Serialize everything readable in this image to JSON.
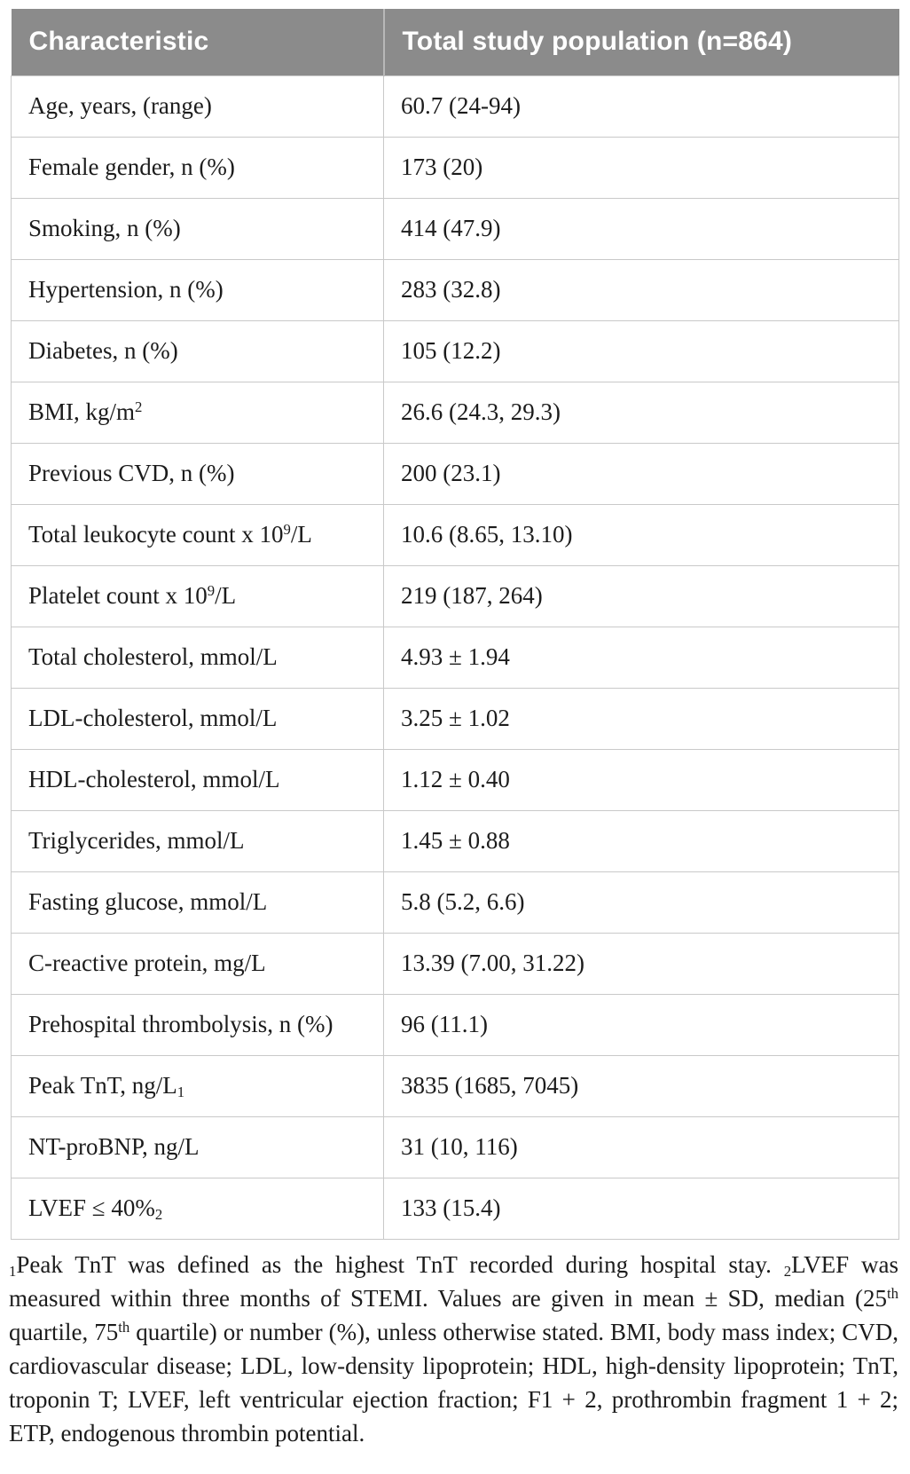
{
  "table": {
    "columns": [
      {
        "label": "Characteristic"
      },
      {
        "label": "Total study population (n=864)"
      }
    ],
    "rows": [
      {
        "characteristic": "Age, years, (range)",
        "value": "60.7 (24-94)"
      },
      {
        "characteristic": "Female gender, n (%)",
        "value": "173 (20)"
      },
      {
        "characteristic": "Smoking, n (%)",
        "value": "414 (47.9)"
      },
      {
        "characteristic": "Hypertension, n (%)",
        "value": "283 (32.8)"
      },
      {
        "characteristic": "Diabetes, n (%)",
        "value": "105 (12.2)"
      },
      {
        "characteristic": "BMI, kg/m^{2}",
        "value": "26.6 (24.3, 29.3)"
      },
      {
        "characteristic": "Previous CVD, n (%)",
        "value": "200 (23.1)"
      },
      {
        "characteristic": "Total leukocyte count x 10^{9}/L",
        "value": "10.6 (8.65, 13.10)"
      },
      {
        "characteristic": "Platelet count x 10^{9}/L",
        "value": "219 (187, 264)"
      },
      {
        "characteristic": "Total cholesterol, mmol/L",
        "value": "4.93 ± 1.94"
      },
      {
        "characteristic": "LDL-cholesterol, mmol/L",
        "value": "3.25 ± 1.02"
      },
      {
        "characteristic": "HDL-cholesterol, mmol/L",
        "value": "1.12 ± 0.40"
      },
      {
        "characteristic": "Triglycerides, mmol/L",
        "value": "1.45 ± 0.88"
      },
      {
        "characteristic": "Fasting glucose, mmol/L",
        "value": "5.8 (5.2, 6.6)"
      },
      {
        "characteristic": "C-reactive protein, mg/L",
        "value": "13.39 (7.00, 31.22)"
      },
      {
        "characteristic": "Prehospital thrombolysis, n (%)",
        "value": "96 (11.1)"
      },
      {
        "characteristic": "Peak TnT, ng/L_{1}",
        "value": "3835 (1685, 7045)"
      },
      {
        "characteristic": "NT-proBNP, ng/L",
        "value": "31 (10, 116)"
      },
      {
        "characteristic": "LVEF ≤ 40%_{2}",
        "value": "133 (15.4)"
      }
    ]
  },
  "footnote": {
    "text": "_{1}Peak TnT was defined as the highest TnT recorded during hospital stay. _{2}LVEF was measured within three months of STEMI. Values are given in mean ± SD, median (25^{th} quartile, 75^{th} quartile) or number (%), unless otherwise stated. BMI, body mass index; CVD, cardiovascular disease; LDL, low-density lipoprotein; HDL, high-density lipoprotein; TnT, troponin T; LVEF, left ventricular ejection fraction; F1 + 2, prothrombin fragment 1 + 2; ETP, endogenous thrombin potential."
  },
  "colors": {
    "header_bg": "#8b8b8b",
    "header_text": "#ffffff",
    "header_divider": "#b8b8b8",
    "border": "#c9c9c9",
    "body_text": "#1c1c1c",
    "page_bg": "#ffffff"
  }
}
